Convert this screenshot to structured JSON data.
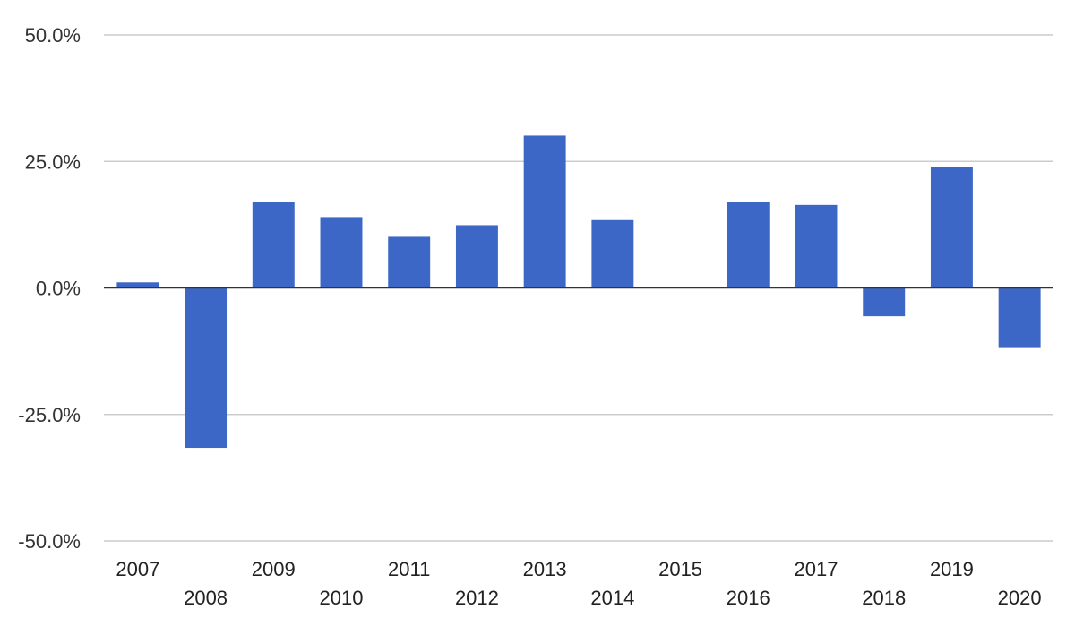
{
  "chart_data": {
    "type": "bar",
    "categories": [
      "2007",
      "2008",
      "2009",
      "2010",
      "2011",
      "2012",
      "2013",
      "2014",
      "2015",
      "2016",
      "2017",
      "2018",
      "2019",
      "2020"
    ],
    "values": [
      1.1,
      -31.6,
      17.0,
      14.0,
      10.1,
      12.4,
      30.1,
      13.4,
      0.2,
      17.0,
      16.4,
      -5.6,
      23.9,
      -11.7
    ],
    "unit": "%",
    "ylim": [
      -50,
      50
    ],
    "y_ticks": [
      50,
      25,
      0,
      -25,
      -50
    ],
    "y_tick_labels": [
      "50.0%",
      "25.0%",
      "0.0%",
      "-25.0%",
      "-50.0%"
    ],
    "title": "",
    "xlabel": "",
    "ylabel": "",
    "grid": true,
    "legend": "none",
    "x_labels_staggered": true,
    "colors": {
      "bar": "#3d67c6",
      "grid": "#cccccc",
      "zero_line": "#333333",
      "text": "#333333"
    }
  }
}
